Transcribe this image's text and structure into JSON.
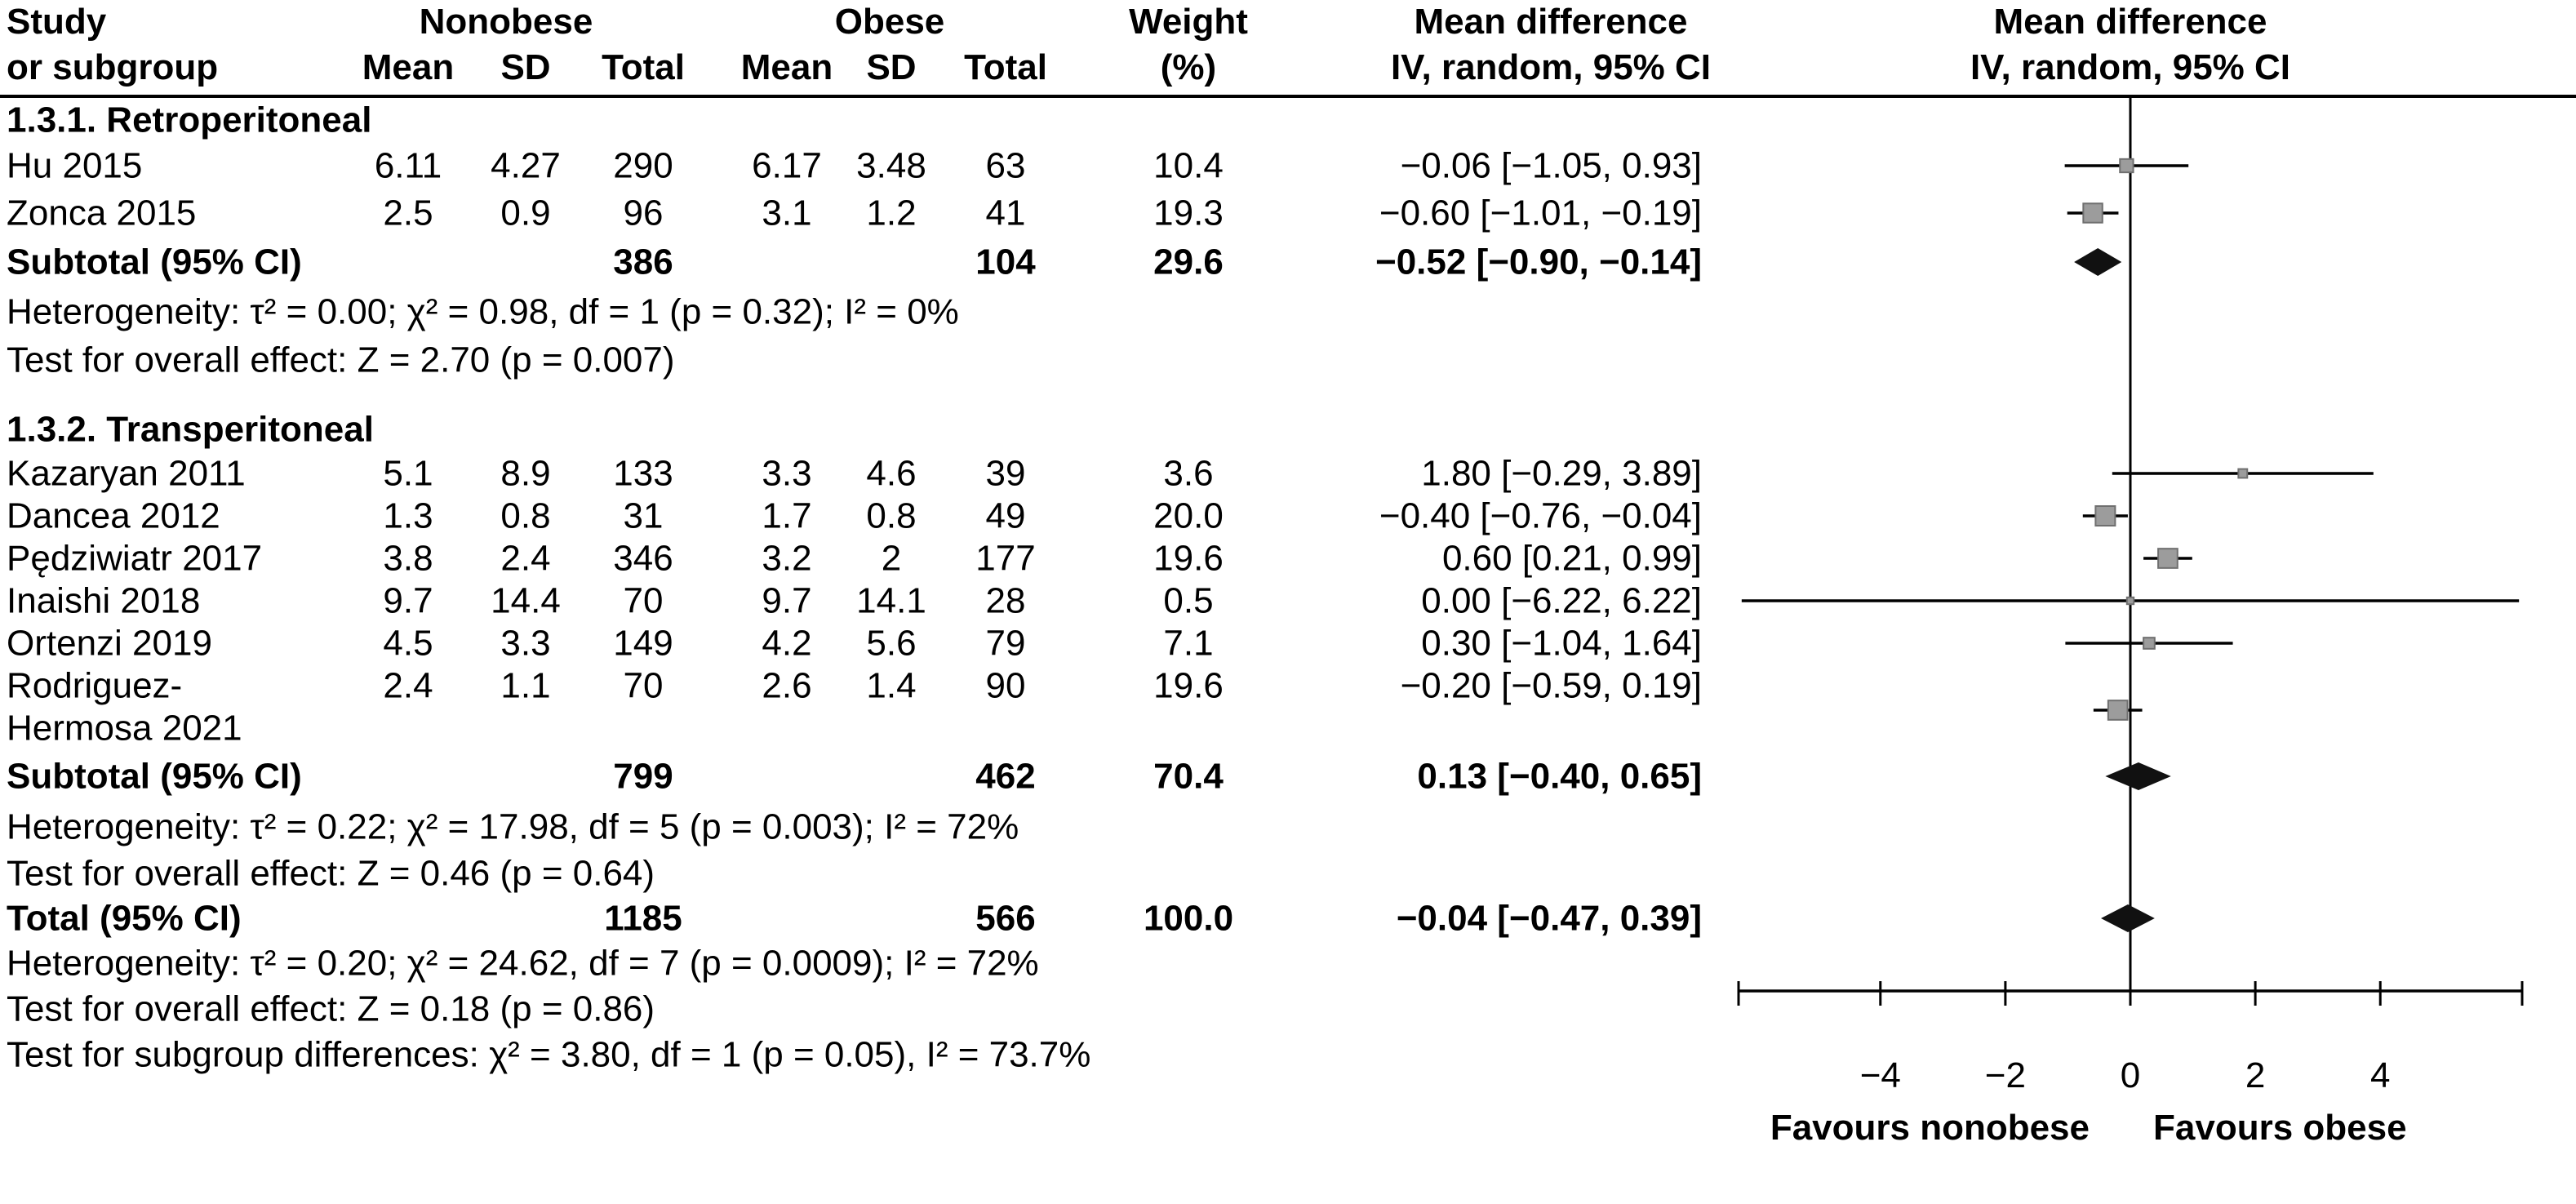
{
  "header": {
    "study_line1": "Study",
    "study_line2": "or subgroup",
    "nonobese": "Nonobese",
    "obese": "Obese",
    "mean": "Mean",
    "sd": "SD",
    "total": "Total",
    "weight_line1": "Weight",
    "weight_line2": "(%)",
    "md_line1": "Mean difference",
    "md_line2": "IV, random, 95% CI"
  },
  "chart_data": {
    "type": "forest",
    "effect_measure": "Mean difference IV, random, 95% CI",
    "xlim": [
      -6.27,
      6.27
    ],
    "x_ticks": [
      -4,
      -2,
      0,
      2,
      4
    ],
    "x_tick_labels": [
      "−4",
      "−2",
      "0",
      "2",
      "4"
    ],
    "favours_left": "Favours nonobese",
    "favours_right": "Favours obese",
    "colors": {
      "axis": "#000000",
      "ci_line": "#000000",
      "marker_fill": "#9c9c9c",
      "marker_stroke": "#6f6f6f",
      "diamond_fill": "#111111"
    },
    "groups": [
      {
        "name": "1.3.1. Retroperitoneal",
        "studies": [
          {
            "study": "Hu 2015",
            "nonobese": {
              "mean": 6.11,
              "sd": 4.27,
              "total": 290
            },
            "obese": {
              "mean": 6.17,
              "sd": 3.48,
              "total": 63
            },
            "weight": "10.4",
            "md": -0.06,
            "ci": [
              -1.05,
              0.93
            ],
            "md_label": "−0.06 [−1.05, 0.93]"
          },
          {
            "study": "Zonca 2015",
            "nonobese": {
              "mean": 2.5,
              "sd": 0.9,
              "total": 96
            },
            "obese": {
              "mean": 3.1,
              "sd": 1.2,
              "total": 41
            },
            "weight": "19.3",
            "md": -0.6,
            "ci": [
              -1.01,
              -0.19
            ],
            "md_label": "−0.60 [−1.01, −0.19]"
          }
        ],
        "subtotal": {
          "label": "Subtotal (95% CI)",
          "total_nonobese": 386,
          "total_obese": 104,
          "weight": "29.6",
          "md": -0.52,
          "ci": [
            -0.9,
            -0.14
          ],
          "md_label": "−0.52 [−0.90, −0.14]"
        },
        "heterogeneity": "Heterogeneity: τ² = 0.00; χ² = 0.98, df = 1 (p = 0.32); I² = 0%",
        "overall_effect": "Test for overall effect: Z = 2.70 (p = 0.007)"
      },
      {
        "name": "1.3.2. Transperitoneal",
        "studies": [
          {
            "study": "Kazaryan 2011",
            "nonobese": {
              "mean": 5.1,
              "sd": 8.9,
              "total": 133
            },
            "obese": {
              "mean": 3.3,
              "sd": 4.6,
              "total": 39
            },
            "weight": "3.6",
            "md": 1.8,
            "ci": [
              -0.29,
              3.89
            ],
            "md_label": "1.80 [−0.29, 3.89]"
          },
          {
            "study": "Dancea 2012",
            "nonobese": {
              "mean": 1.3,
              "sd": 0.8,
              "total": 31
            },
            "obese": {
              "mean": 1.7,
              "sd": 0.8,
              "total": 49
            },
            "weight": "20.0",
            "md": -0.4,
            "ci": [
              -0.76,
              -0.04
            ],
            "md_label": "−0.40 [−0.76, −0.04]"
          },
          {
            "study": "Pędziwiatr 2017",
            "nonobese": {
              "mean": 3.8,
              "sd": 2.4,
              "total": 346
            },
            "obese": {
              "mean": 3.2,
              "sd": 2,
              "total": 177
            },
            "weight": "19.6",
            "md": 0.6,
            "ci": [
              0.21,
              0.99
            ],
            "md_label": "0.60 [0.21, 0.99]"
          },
          {
            "study": "Inaishi 2018",
            "nonobese": {
              "mean": 9.7,
              "sd": 14.4,
              "total": 70
            },
            "obese": {
              "mean": 9.7,
              "sd": 14.1,
              "total": 28
            },
            "weight": "0.5",
            "md": 0.0,
            "ci": [
              -6.22,
              6.22
            ],
            "md_label": "0.00 [−6.22, 6.22]"
          },
          {
            "study": "Ortenzi 2019",
            "nonobese": {
              "mean": 4.5,
              "sd": 3.3,
              "total": 149
            },
            "obese": {
              "mean": 4.2,
              "sd": 5.6,
              "total": 79
            },
            "weight": "7.1",
            "md": 0.3,
            "ci": [
              -1.04,
              1.64
            ],
            "md_label": "0.30 [−1.04, 1.64]"
          },
          {
            "study": "Rodriguez-",
            "study_line2": "Hermosa 2021",
            "nonobese": {
              "mean": 2.4,
              "sd": 1.1,
              "total": 70
            },
            "obese": {
              "mean": 2.6,
              "sd": 1.4,
              "total": 90
            },
            "weight": "19.6",
            "md": -0.2,
            "ci": [
              -0.59,
              0.19
            ],
            "md_label": "−0.20 [−0.59, 0.19]"
          }
        ],
        "subtotal": {
          "label": "Subtotal (95% CI)",
          "total_nonobese": 799,
          "total_obese": 462,
          "weight": "70.4",
          "md": 0.13,
          "ci": [
            -0.4,
            0.65
          ],
          "md_label": "0.13 [−0.40, 0.65]"
        },
        "heterogeneity": "Heterogeneity: τ² = 0.22; χ² = 17.98, df = 5 (p = 0.003); I² = 72%",
        "overall_effect": "Test for overall effect: Z = 0.46 (p = 0.64)"
      }
    ],
    "total": {
      "label": "Total (95% CI)",
      "total_nonobese": 1185,
      "total_obese": 566,
      "weight": "100.0",
      "md": -0.04,
      "ci": [
        -0.47,
        0.39
      ],
      "md_label": "−0.04 [−0.47, 0.39]"
    },
    "total_heterogeneity": "Heterogeneity: τ² = 0.20; χ² = 24.62, df = 7 (p = 0.0009); I² = 72%",
    "total_overall_effect": "Test for overall effect: Z = 0.18 (p = 0.86)",
    "subgroup_differences": "Test for subgroup differences: χ² = 3.80, df = 1 (p = 0.05), I² = 73.7%"
  }
}
